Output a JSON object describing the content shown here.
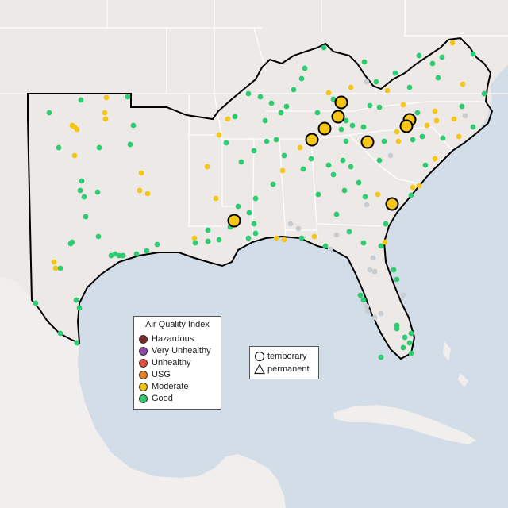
{
  "map": {
    "colors": {
      "water": "#d3dde7",
      "land": "#ece9e6",
      "foreign_land": "#f1efed",
      "state_border": "#ffffff",
      "region_outline": "#000000"
    },
    "markers": {
      "good_color": "#2ecc71",
      "moderate_color": "#f5c518",
      "nodata_color": "#c8cdd2"
    }
  },
  "legend": {
    "title": "Air Quality Index",
    "items": [
      {
        "label": "Hazardous",
        "color": "#7b2a2a"
      },
      {
        "label": "Very Unhealthy",
        "color": "#8e44ad"
      },
      {
        "label": "Unhealthy",
        "color": "#e74c3c"
      },
      {
        "label": "USG",
        "color": "#e67e22"
      },
      {
        "label": "Moderate",
        "color": "#f1c40f"
      },
      {
        "label": "Good",
        "color": "#2ecc71"
      }
    ]
  },
  "monitor_legend": {
    "temporary_label": "temporary",
    "permanent_label": "permanent"
  }
}
